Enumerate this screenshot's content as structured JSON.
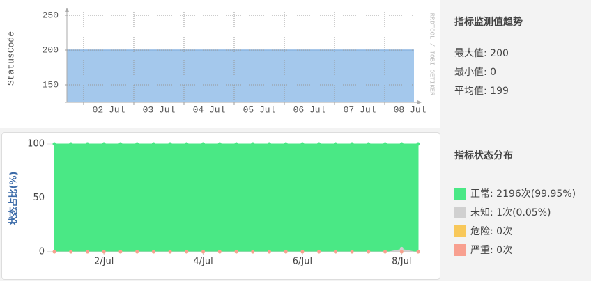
{
  "chart_data": [
    {
      "type": "area",
      "ylabel": "StatusCode",
      "watermark": "RRDTOOL / TOBI OETIKER",
      "color": "#a4c8ec",
      "line_color": "#8ab4e0",
      "xlim": [
        1.667,
        8.583
      ],
      "ylim": [
        125,
        255
      ],
      "yticks": [
        150,
        200,
        250
      ],
      "xgrid": [
        2,
        3,
        4,
        5,
        6,
        7,
        8
      ],
      "xticks": [
        {
          "value": 2.5,
          "label": "02 Jul"
        },
        {
          "value": 3.5,
          "label": "03 Jul"
        },
        {
          "value": 4.5,
          "label": "04 Jul"
        },
        {
          "value": 5.5,
          "label": "05 Jul"
        },
        {
          "value": 6.5,
          "label": "06 Jul"
        },
        {
          "value": 7.5,
          "label": "07 Jul"
        },
        {
          "value": 8.5,
          "label": "08 Jul"
        }
      ],
      "grid": true,
      "x": [
        1.667,
        8.583
      ],
      "values": [
        200,
        200
      ]
    },
    {
      "type": "stacked_area",
      "ylabel": "状态占比(%)",
      "xlim": [
        1,
        8.333
      ],
      "ylim": [
        0,
        100
      ],
      "yticks": [
        0,
        50,
        100
      ],
      "xticks": [
        {
          "value": 2,
          "label": "2/Jul"
        },
        {
          "value": 4,
          "label": "4/Jul"
        },
        {
          "value": 6,
          "label": "6/Jul"
        },
        {
          "value": 8,
          "label": "8/Jul"
        }
      ],
      "x": [
        1,
        1.333,
        1.667,
        2,
        2.333,
        2.667,
        3,
        3.333,
        3.667,
        4,
        4.333,
        4.667,
        5,
        5.333,
        5.667,
        6,
        6.333,
        6.667,
        7,
        7.333,
        7.667,
        8,
        8.333
      ],
      "series": [
        {
          "name": "正常: 2196次(99.95%)",
          "color": "#4ae885",
          "values": [
            100,
            100,
            100,
            100,
            100,
            100,
            100,
            100,
            100,
            100,
            100,
            100,
            100,
            100,
            100,
            100,
            100,
            100,
            100,
            100,
            100,
            97,
            100
          ]
        },
        {
          "name": "未知: 1次(0.05%)",
          "color": "#d0d0d0",
          "values": [
            0,
            0,
            0,
            0,
            0,
            0,
            0,
            0,
            0,
            0,
            0,
            0,
            0,
            0,
            0,
            0,
            0,
            0,
            0,
            0,
            0,
            3,
            0
          ]
        },
        {
          "name": "危险: 0次",
          "color": "#f8c85a",
          "values": [
            0,
            0,
            0,
            0,
            0,
            0,
            0,
            0,
            0,
            0,
            0,
            0,
            0,
            0,
            0,
            0,
            0,
            0,
            0,
            0,
            0,
            0,
            0
          ]
        },
        {
          "name": "严重: 0次",
          "color": "#f8a090",
          "values": [
            0,
            0,
            0,
            0,
            0,
            0,
            0,
            0,
            0,
            0,
            0,
            0,
            0,
            0,
            0,
            0,
            0,
            0,
            0,
            0,
            0,
            0,
            0
          ]
        }
      ]
    }
  ],
  "panels": {
    "trend_title": "指标监测值趋势",
    "stats": [
      "最大值: 200",
      "最小值: 0",
      "平均值: 199"
    ],
    "dist_title": "指标状态分布"
  }
}
